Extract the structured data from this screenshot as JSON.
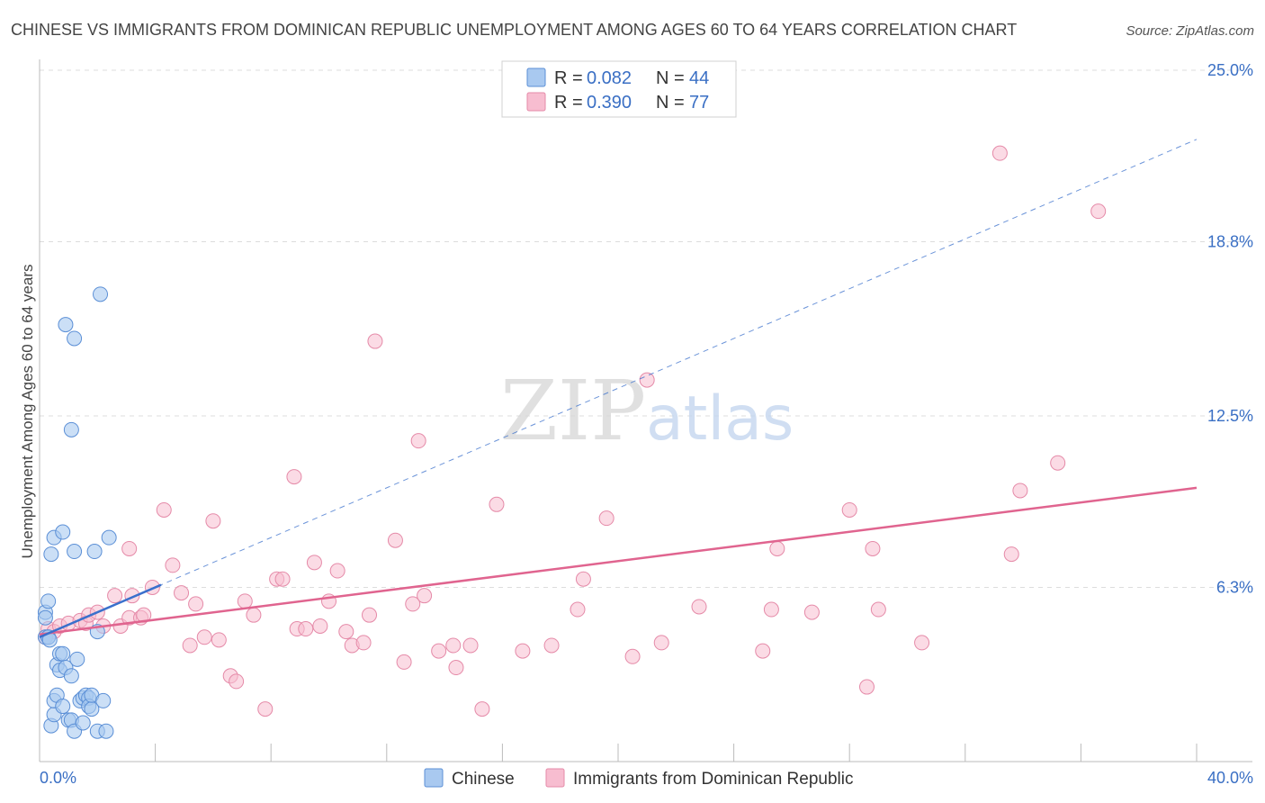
{
  "header": {
    "title": "CHINESE VS IMMIGRANTS FROM DOMINICAN REPUBLIC UNEMPLOYMENT AMONG AGES 60 TO 64 YEARS CORRELATION CHART",
    "source": "Source: ZipAtlas.com"
  },
  "watermark": {
    "zip": "ZIP",
    "atlas": "atlas"
  },
  "legend": {
    "r_label": "R =",
    "n_label": "N =",
    "rows": [
      {
        "r": "0.082",
        "n": "44"
      },
      {
        "r": "0.390",
        "n": "77"
      }
    ]
  },
  "colors": {
    "blue_fill": "#a9c9f0",
    "blue_stroke": "#5b8fd6",
    "blue_line": "#3a70cc",
    "pink_fill": "#f7bdd0",
    "pink_stroke": "#e58aa8",
    "pink_line": "#e0648f",
    "tick_text": "#3a6fc4",
    "grid": "#dddddd"
  },
  "chart_data": {
    "type": "scatter",
    "title": "CHINESE VS IMMIGRANTS FROM DOMINICAN REPUBLIC UNEMPLOYMENT AMONG AGES 60 TO 64 YEARS CORRELATION CHART",
    "xlabel": "",
    "ylabel": "Unemployment Among Ages 60 to 64 years",
    "xlim": [
      0,
      40
    ],
    "ylim": [
      0,
      25
    ],
    "x_tick_labels": [
      "0.0%",
      "40.0%"
    ],
    "y_ticks": [
      6.3,
      12.5,
      18.8,
      25.0
    ],
    "y_tick_labels": [
      "6.3%",
      "12.5%",
      "18.8%",
      "25.0%"
    ],
    "legend_position": "top-center",
    "series": [
      {
        "name": "Chinese",
        "r": 0.082,
        "n": 44,
        "trend": {
          "x0": 0.0,
          "y0": 4.5,
          "x1": 40.0,
          "y1": 22.5
        },
        "points": [
          [
            0.2,
            5.4
          ],
          [
            0.2,
            5.2
          ],
          [
            0.2,
            4.5
          ],
          [
            0.3,
            5.8
          ],
          [
            0.3,
            4.5
          ],
          [
            0.3,
            4.5
          ],
          [
            0.35,
            4.4
          ],
          [
            0.4,
            1.3
          ],
          [
            0.4,
            7.5
          ],
          [
            0.5,
            8.1
          ],
          [
            0.5,
            1.7
          ],
          [
            0.5,
            2.2
          ],
          [
            0.6,
            2.4
          ],
          [
            0.6,
            3.5
          ],
          [
            0.7,
            3.9
          ],
          [
            0.7,
            3.3
          ],
          [
            0.8,
            8.3
          ],
          [
            0.8,
            3.9
          ],
          [
            0.8,
            2.0
          ],
          [
            0.9,
            15.8
          ],
          [
            0.9,
            3.4
          ],
          [
            1.0,
            1.5
          ],
          [
            1.1,
            3.1
          ],
          [
            1.1,
            1.5
          ],
          [
            1.1,
            12.0
          ],
          [
            1.2,
            15.3
          ],
          [
            1.2,
            7.6
          ],
          [
            1.2,
            1.1
          ],
          [
            1.3,
            3.7
          ],
          [
            1.4,
            2.2
          ],
          [
            1.5,
            1.4
          ],
          [
            1.5,
            2.3
          ],
          [
            1.6,
            2.4
          ],
          [
            1.7,
            2.3
          ],
          [
            1.7,
            2.0
          ],
          [
            1.8,
            1.9
          ],
          [
            1.8,
            2.4
          ],
          [
            1.9,
            7.6
          ],
          [
            2.0,
            1.1
          ],
          [
            2.0,
            4.7
          ],
          [
            2.1,
            16.9
          ],
          [
            2.2,
            2.2
          ],
          [
            2.3,
            1.1
          ],
          [
            2.4,
            8.1
          ]
        ]
      },
      {
        "name": "Immigrants from Dominican Republic",
        "r": 0.39,
        "n": 77,
        "trend": {
          "x0": 0.0,
          "y0": 4.6,
          "x1": 40.0,
          "y1": 9.9
        },
        "points": [
          [
            0.2,
            4.5
          ],
          [
            0.3,
            4.8
          ],
          [
            0.5,
            4.7
          ],
          [
            0.7,
            4.9
          ],
          [
            1.0,
            5.0
          ],
          [
            1.4,
            5.1
          ],
          [
            1.6,
            5.0
          ],
          [
            1.7,
            5.3
          ],
          [
            2.0,
            5.4
          ],
          [
            2.2,
            4.9
          ],
          [
            2.6,
            6.0
          ],
          [
            2.8,
            4.9
          ],
          [
            3.1,
            5.2
          ],
          [
            3.1,
            7.7
          ],
          [
            3.2,
            6.0
          ],
          [
            3.5,
            5.2
          ],
          [
            3.6,
            5.3
          ],
          [
            3.9,
            6.3
          ],
          [
            4.3,
            9.1
          ],
          [
            4.6,
            7.1
          ],
          [
            4.9,
            6.1
          ],
          [
            5.2,
            4.2
          ],
          [
            5.4,
            5.7
          ],
          [
            5.7,
            4.5
          ],
          [
            6.0,
            8.7
          ],
          [
            6.2,
            4.4
          ],
          [
            6.6,
            3.1
          ],
          [
            6.8,
            2.9
          ],
          [
            7.1,
            5.8
          ],
          [
            7.4,
            5.3
          ],
          [
            7.8,
            1.9
          ],
          [
            8.2,
            6.6
          ],
          [
            8.4,
            6.6
          ],
          [
            8.8,
            10.3
          ],
          [
            8.9,
            4.8
          ],
          [
            9.2,
            4.8
          ],
          [
            9.5,
            7.2
          ],
          [
            9.7,
            4.9
          ],
          [
            10.0,
            5.8
          ],
          [
            10.3,
            6.9
          ],
          [
            10.6,
            4.7
          ],
          [
            10.8,
            4.2
          ],
          [
            11.2,
            4.3
          ],
          [
            11.4,
            5.3
          ],
          [
            11.6,
            15.2
          ],
          [
            12.3,
            8.0
          ],
          [
            12.6,
            3.6
          ],
          [
            12.9,
            5.7
          ],
          [
            13.1,
            11.6
          ],
          [
            13.3,
            6.0
          ],
          [
            13.8,
            4.0
          ],
          [
            14.3,
            4.2
          ],
          [
            14.4,
            3.4
          ],
          [
            14.9,
            4.2
          ],
          [
            15.3,
            1.9
          ],
          [
            15.8,
            9.3
          ],
          [
            16.7,
            4.0
          ],
          [
            17.7,
            4.2
          ],
          [
            18.6,
            5.5
          ],
          [
            18.8,
            6.6
          ],
          [
            19.6,
            8.8
          ],
          [
            20.5,
            3.8
          ],
          [
            21.0,
            13.8
          ],
          [
            21.5,
            4.3
          ],
          [
            22.8,
            5.6
          ],
          [
            25.0,
            4.0
          ],
          [
            25.3,
            5.5
          ],
          [
            25.5,
            7.7
          ],
          [
            26.7,
            5.4
          ],
          [
            28.0,
            9.1
          ],
          [
            28.6,
            2.7
          ],
          [
            28.8,
            7.7
          ],
          [
            29.0,
            5.5
          ],
          [
            30.5,
            4.3
          ],
          [
            33.2,
            22.0
          ],
          [
            33.6,
            7.5
          ],
          [
            33.9,
            9.8
          ],
          [
            35.2,
            10.8
          ],
          [
            36.6,
            19.9
          ]
        ]
      }
    ]
  },
  "bottom_legend": {
    "items": [
      {
        "label": "Chinese"
      },
      {
        "label": "Immigrants from Dominican Republic"
      }
    ]
  }
}
